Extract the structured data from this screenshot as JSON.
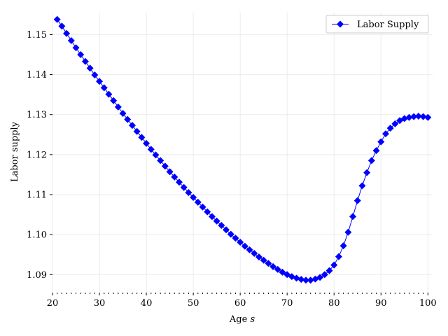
{
  "chart_data": {
    "type": "line",
    "title": "",
    "xlabel": "Age",
    "xlabel_var": "s",
    "ylabel": "Labor supply",
    "xlim": [
      20,
      101
    ],
    "ylim": [
      1.0855,
      1.1555
    ],
    "xticks": [
      20,
      30,
      40,
      50,
      60,
      70,
      80,
      90,
      100
    ],
    "xtick_labels": [
      "20",
      "30",
      "40",
      "50",
      "60",
      "70",
      "80",
      "90",
      "100"
    ],
    "yticks": [
      1.09,
      1.1,
      1.11,
      1.12,
      1.13,
      1.14,
      1.15
    ],
    "ytick_labels": [
      "1.09",
      "1.10",
      "1.11",
      "1.12",
      "1.13",
      "1.14",
      "1.15"
    ],
    "grid": true,
    "legend_position": "top-right",
    "series": [
      {
        "name": "Labor Supply",
        "color": "#0000ff",
        "marker": "diamond",
        "x": [
          21,
          22,
          23,
          24,
          25,
          26,
          27,
          28,
          29,
          30,
          31,
          32,
          33,
          34,
          35,
          36,
          37,
          38,
          39,
          40,
          41,
          42,
          43,
          44,
          45,
          46,
          47,
          48,
          49,
          50,
          51,
          52,
          53,
          54,
          55,
          56,
          57,
          58,
          59,
          60,
          61,
          62,
          63,
          64,
          65,
          66,
          67,
          68,
          69,
          70,
          71,
          72,
          73,
          74,
          75,
          76,
          77,
          78,
          79,
          80,
          81,
          82,
          83,
          84,
          85,
          86,
          87,
          88,
          89,
          90,
          91,
          92,
          93,
          94,
          95,
          96,
          97,
          98,
          99,
          100
        ],
        "values": [
          1.1538,
          1.1521,
          1.1503,
          1.1485,
          1.1467,
          1.145,
          1.1433,
          1.1416,
          1.1399,
          1.1383,
          1.1367,
          1.1351,
          1.1335,
          1.1319,
          1.1303,
          1.1288,
          1.1273,
          1.1258,
          1.1243,
          1.1228,
          1.1213,
          1.1199,
          1.1185,
          1.1171,
          1.1157,
          1.1144,
          1.1131,
          1.1118,
          1.1105,
          1.1093,
          1.1081,
          1.1069,
          1.1057,
          1.1045,
          1.1034,
          1.1023,
          1.1012,
          1.1001,
          1.0991,
          1.0981,
          1.0971,
          1.0962,
          1.0953,
          1.0944,
          1.0936,
          1.0928,
          1.092,
          1.0913,
          1.0906,
          1.09,
          1.0895,
          1.0891,
          1.0888,
          1.0886,
          1.0886,
          1.0889,
          1.0893,
          1.09,
          1.091,
          1.0924,
          1.0945,
          1.0972,
          1.1006,
          1.1045,
          1.1085,
          1.1122,
          1.1155,
          1.1185,
          1.121,
          1.1232,
          1.1252,
          1.1266,
          1.1277,
          1.1285,
          1.129,
          1.1293,
          1.1295,
          1.1296,
          1.1295,
          1.1293
        ]
      }
    ]
  }
}
